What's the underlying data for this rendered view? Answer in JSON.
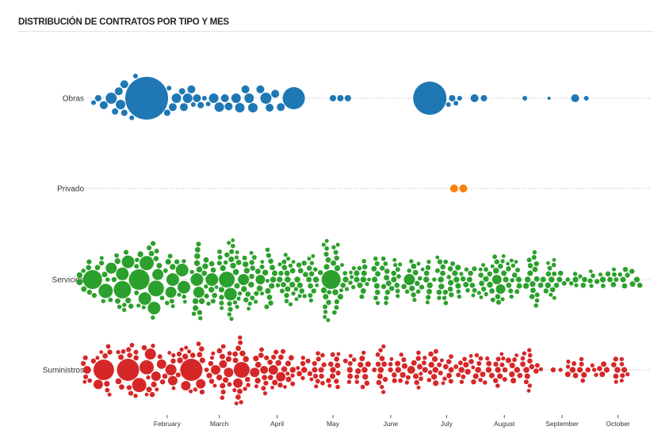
{
  "title": "DISTRIBUCIÓN DE CONTRATOS POR TIPO Y MES",
  "chart_data": {
    "type": "scatter",
    "subtype": "beeswarm",
    "title": "DISTRIBUCIÓN DE CONTRATOS POR TIPO Y MES",
    "x_unit": "day of year",
    "size_unit": "relative contract amount",
    "months": [
      {
        "label": "February",
        "day": 31
      },
      {
        "label": "March",
        "day": 59
      },
      {
        "label": "April",
        "day": 90
      },
      {
        "label": "May",
        "day": 120
      },
      {
        "label": "June",
        "day": 151
      },
      {
        "label": "July",
        "day": 181
      },
      {
        "label": "August",
        "day": 212
      },
      {
        "label": "September",
        "day": 243
      },
      {
        "label": "October",
        "day": 273
      }
    ],
    "series": [
      {
        "name": "Obras",
        "color": "#1f77b4",
        "points": [
          [
            -8.5,
            9
          ],
          [
            -6,
            16
          ],
          [
            -3,
            25
          ],
          [
            1,
            49
          ],
          [
            3,
            16
          ],
          [
            5,
            25
          ],
          [
            6,
            36
          ],
          [
            8,
            16
          ],
          [
            8,
            25
          ],
          [
            20,
            729
          ],
          [
            31,
            16
          ],
          [
            34,
            25
          ],
          [
            36,
            36
          ],
          [
            39,
            16
          ],
          [
            40,
            25
          ],
          [
            42,
            36
          ],
          [
            44,
            25
          ],
          [
            47,
            25
          ],
          [
            49,
            16
          ],
          [
            51,
            9
          ],
          [
            56,
            36
          ],
          [
            59,
            36
          ],
          [
            62,
            25
          ],
          [
            64,
            25
          ],
          [
            68,
            36
          ],
          [
            70,
            36
          ],
          [
            73,
            25
          ],
          [
            75,
            36
          ],
          [
            77,
            36
          ],
          [
            81,
            25
          ],
          [
            84,
            49
          ],
          [
            86,
            25
          ],
          [
            89,
            25
          ],
          [
            92,
            25
          ],
          [
            99,
            196
          ],
          [
            120,
            16
          ],
          [
            124,
            16
          ],
          [
            128,
            16
          ],
          [
            172,
            441
          ],
          [
            184,
            16
          ],
          [
            186,
            9
          ],
          [
            196,
            25
          ],
          [
            201,
            16
          ],
          [
            223,
            9
          ],
          [
            236,
            4
          ],
          [
            250,
            25
          ],
          [
            256,
            9
          ],
          [
            12,
            9
          ],
          [
            14,
            9
          ],
          [
            32,
            9
          ],
          [
            45,
            9
          ],
          [
            53,
            9
          ],
          [
            182,
            9
          ],
          [
            188,
            9
          ]
        ],
        "small_start_day": 0,
        "small_counts": []
      },
      {
        "name": "Privado",
        "color": "#ff7f0e",
        "points": [
          [
            185,
            25
          ],
          [
            190,
            25
          ]
        ],
        "small_start_day": 0,
        "small_counts": []
      },
      {
        "name": "Servicios",
        "color": "#2ca02c",
        "points": [
          [
            -16,
            16
          ],
          [
            -9,
            144
          ],
          [
            -2,
            81
          ],
          [
            1,
            49
          ],
          [
            7,
            64
          ],
          [
            7,
            121
          ],
          [
            10,
            64
          ],
          [
            16,
            169
          ],
          [
            19,
            64
          ],
          [
            20,
            81
          ],
          [
            24,
            64
          ],
          [
            25,
            100
          ],
          [
            26,
            49
          ],
          [
            33,
            49
          ],
          [
            34,
            64
          ],
          [
            40,
            64
          ],
          [
            39,
            64
          ],
          [
            47,
            64
          ],
          [
            48,
            49
          ],
          [
            55,
            64
          ],
          [
            63,
            100
          ],
          [
            65,
            64
          ],
          [
            72,
            49
          ],
          [
            81,
            36
          ],
          [
            119,
            144
          ],
          [
            161,
            49
          ],
          [
            208,
            36
          ],
          [
            210,
            36
          ]
        ],
        "small_start_day": -16,
        "small_counts": [
          6,
          6,
          6,
          6,
          6,
          6,
          6,
          6,
          6,
          14,
          14,
          14,
          14,
          14,
          14,
          14,
          14,
          14,
          14,
          14,
          11,
          11,
          11,
          11,
          11,
          11,
          11,
          11,
          11,
          11,
          11,
          11,
          11,
          11,
          11,
          11,
          11,
          3,
          6,
          6,
          6,
          6,
          5
        ]
      },
      {
        "name": "Suministros",
        "color": "#d62728",
        "points": [
          [
            -12,
            25
          ],
          [
            -6,
            36
          ],
          [
            -3,
            169
          ],
          [
            10,
            196
          ],
          [
            16,
            81
          ],
          [
            20,
            81
          ],
          [
            22,
            49
          ],
          [
            25,
            36
          ],
          [
            28,
            36
          ],
          [
            33,
            49
          ],
          [
            34,
            36
          ],
          [
            41,
            36
          ],
          [
            44,
            196
          ],
          [
            49,
            36
          ],
          [
            57,
            36
          ],
          [
            61,
            25
          ],
          [
            64,
            36
          ],
          [
            69,
            36
          ],
          [
            71,
            100
          ],
          [
            78,
            36
          ],
          [
            83,
            25
          ],
          [
            88,
            36
          ],
          [
            92,
            36
          ],
          [
            162,
            25
          ]
        ],
        "small_start_day": -14,
        "small_counts": [
          6,
          6,
          6,
          6,
          6,
          6,
          6,
          6,
          6,
          9,
          9,
          9,
          9,
          9,
          9,
          9,
          9,
          9,
          9,
          9,
          9,
          9,
          9,
          9,
          9,
          9,
          9,
          9,
          9,
          9,
          9,
          9,
          9,
          9,
          9,
          1,
          2,
          6,
          6,
          6,
          6,
          6
        ]
      }
    ]
  }
}
